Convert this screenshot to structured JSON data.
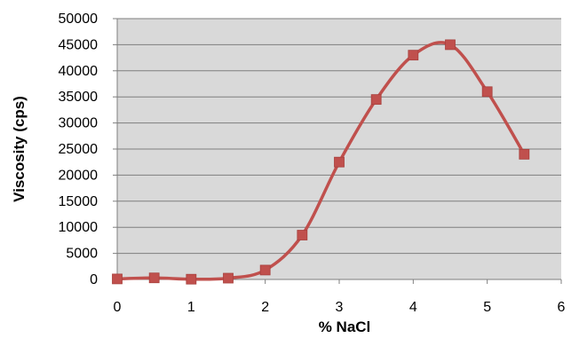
{
  "chart_data": {
    "type": "line",
    "title": "",
    "xlabel": "% NaCl",
    "ylabel": "Viscosity (cps)",
    "xlim": [
      0,
      6
    ],
    "ylim": [
      0,
      50000
    ],
    "x_ticks": [
      0,
      1,
      2,
      3,
      4,
      5,
      6
    ],
    "y_ticks": [
      0,
      5000,
      10000,
      15000,
      20000,
      25000,
      30000,
      35000,
      40000,
      45000,
      50000
    ],
    "grid": true,
    "smooth": true,
    "legend": "none",
    "colors": {
      "plot_background": "#d9d9d9",
      "gridline": "#7f7f7f",
      "line": "#c0504d",
      "marker": "#c0504d"
    },
    "series": [
      {
        "x": [
          0,
          0.5,
          1,
          1.5,
          2,
          2.5,
          3,
          3.5,
          4,
          4.5,
          5,
          5.5
        ],
        "y": [
          100,
          300,
          50,
          250,
          1800,
          8500,
          22500,
          34500,
          43000,
          45000,
          36000,
          24000
        ]
      }
    ]
  }
}
